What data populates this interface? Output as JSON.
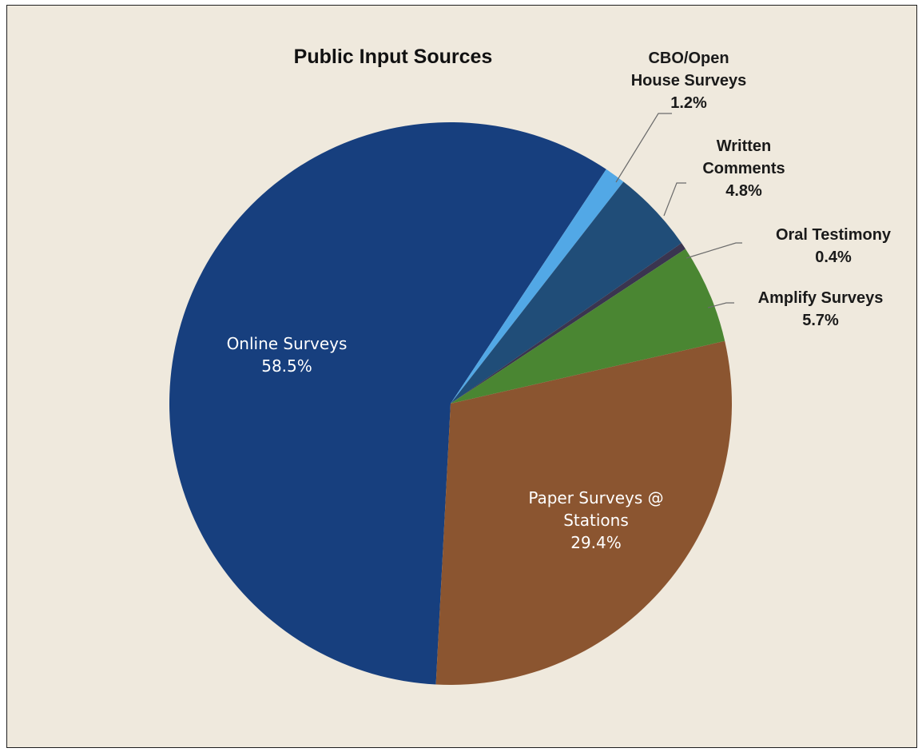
{
  "chart_data": {
    "type": "pie",
    "title": "Public Input Sources",
    "slices": [
      {
        "name": "Online Surveys",
        "value": 58.5,
        "label_lines": [
          "Online Surveys",
          "58.5%"
        ],
        "color": "#173f7e",
        "label_pos": "inside"
      },
      {
        "name": "CBO/Open House Surveys",
        "value": 1.2,
        "label_lines": [
          "CBO/Open",
          "House Surveys",
          "1.2%"
        ],
        "color": "#52a8e6",
        "label_pos": "outside"
      },
      {
        "name": "Written Comments",
        "value": 4.8,
        "label_lines": [
          "Written",
          "Comments",
          "4.8%"
        ],
        "color": "#204d78",
        "label_pos": "outside"
      },
      {
        "name": "Oral Testimony",
        "value": 0.4,
        "label_lines": [
          "Oral Testimony",
          "0.4%"
        ],
        "color": "#3a3550",
        "label_pos": "outside"
      },
      {
        "name": "Amplify Surveys",
        "value": 5.7,
        "label_lines": [
          "Amplify Surveys",
          "5.7%"
        ],
        "color": "#4a8632",
        "label_pos": "outside"
      },
      {
        "name": "Paper Surveys @ Stations",
        "value": 29.4,
        "label_lines": [
          "Paper Surveys @",
          "Stations",
          "29.4%"
        ],
        "color": "#8b5530",
        "label_pos": "inside"
      }
    ]
  }
}
